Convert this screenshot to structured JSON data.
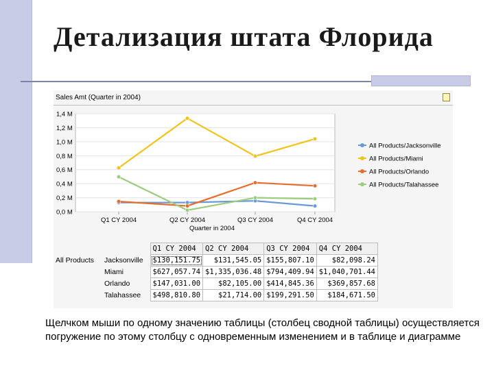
{
  "slide": {
    "title": "Детализация штата Флорида",
    "caption": "Щелчком мыши по одному значению таблицы (столбец сводной таблицы) осуществляется погружение по этому столбцу с одновременным изменением и в таблице и диаграмме"
  },
  "chart_header": {
    "title": "Sales Amt (Quarter in 2004)"
  },
  "chart_data": {
    "type": "line",
    "title": "Sales Amt (Quarter in 2004)",
    "xlabel": "Quarter in 2004",
    "ylabel": "",
    "categories": [
      "Q1 CY 2004",
      "Q2 CY 2004",
      "Q3 CY 2004",
      "Q4 CY 2004"
    ],
    "yticks": [
      "0,0 M",
      "0,2 M",
      "0,4 M",
      "0,6 M",
      "0,8 M",
      "1,0 M",
      "1,2 M",
      "1,4 M"
    ],
    "ylim": [
      0,
      1400000
    ],
    "grid": true,
    "legend_position": "right",
    "series": [
      {
        "name": "All Products/Jacksonville",
        "color": "#6a9ad6",
        "values": [
          130151.75,
          131545.05,
          155807.1,
          82098.24
        ]
      },
      {
        "name": "All Products/Miami",
        "color": "#f0c419",
        "values": [
          627057.74,
          1335036.48,
          794409.94,
          1040701.44
        ]
      },
      {
        "name": "All Products/Orlando",
        "color": "#e86c2c",
        "values": [
          147031.0,
          82105.0,
          414845.36,
          369857.68
        ]
      },
      {
        "name": "All Products/Talahassee",
        "color": "#9acd7c",
        "values": [
          498810.8,
          21714.0,
          199291.5,
          184671.5
        ]
      }
    ]
  },
  "pivot": {
    "row_group": "All Products",
    "columns": [
      "Q1 CY 2004",
      "Q2 CY 2004",
      "Q3 CY 2004",
      "Q4 CY 2004"
    ],
    "rows": [
      {
        "city": "Jacksonville",
        "values": [
          "$130,151.75",
          "$131,545.05",
          "$155,807.10",
          "$82,098.24"
        ]
      },
      {
        "city": "Miami",
        "values": [
          "$627,057.74",
          "$1,335,036.48",
          "$794,409.94",
          "$1,040,701.44"
        ]
      },
      {
        "city": "Orlando",
        "values": [
          "$147,031.00",
          "$82,105.00",
          "$414,845.36",
          "$369,857.68"
        ]
      },
      {
        "city": "Talahassee",
        "values": [
          "$498,810.80",
          "$21,714.00",
          "$199,291.50",
          "$184,671.50"
        ]
      }
    ]
  }
}
